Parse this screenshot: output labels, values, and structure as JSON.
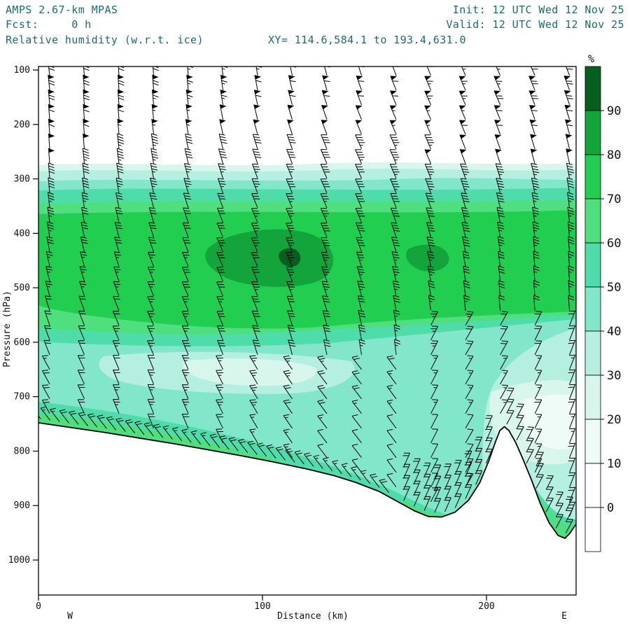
{
  "header": {
    "model": "AMPS 2.67-km MPAS",
    "fcst": "Fcst:     0 h",
    "field": "Relative humidity (w.r.t. ice)",
    "xy_range": "XY= 114.6,584.1 to 193.4,631.0",
    "init": "Init: 12 UTC Wed 12 Nov 25",
    "valid": "Valid: 12 UTC Wed 12 Nov 25",
    "text_color": "#1d6b6b"
  },
  "axes": {
    "y_label": "Pressure (hPa)",
    "y_ticks": [
      100,
      200,
      300,
      400,
      500,
      600,
      700,
      800,
      900,
      1000
    ],
    "x_label": "Distance (km)",
    "x_ticks": [
      0,
      100,
      200
    ],
    "west_label": "W",
    "east_label": "E"
  },
  "colorbar": {
    "unit": "%",
    "tick_labels": [
      90,
      80,
      70,
      60,
      50,
      40,
      30,
      20,
      10,
      0
    ],
    "segments_top_to_bottom": [
      "#075e1e",
      "#13a43b",
      "#22ce50",
      "#4fdf7f",
      "#4fdcab",
      "#82e6ca",
      "#b4efdf",
      "#d8f6ec",
      "#eefbf6",
      "#ffffff",
      "#ffffff"
    ]
  },
  "chart_data": {
    "type": "heatmap",
    "title": "Relative humidity (w.r.t. ice)",
    "model": "AMPS 2.67-km MPAS",
    "forecast_hour": "0 h",
    "init_time": "12 UTC Wed 12 Nov 25",
    "valid_time": "12 UTC Wed 12 Nov 25",
    "xlabel": "Distance (km)",
    "ylabel": "Pressure (hPa)",
    "x_range_km": [
      0,
      240
    ],
    "y_range_hPa": [
      100,
      1050
    ],
    "contour_interval_pct": 10,
    "palette": {
      "0": "#ffffff",
      "10": "#eefbf6",
      "20": "#d8f6ec",
      "30": "#b4efdf",
      "40": "#82e6ca",
      "50": "#4fdcab",
      "60": "#4fdf7f",
      "70": "#22ce50",
      "80": "#13a43b",
      "90": "#075e1e"
    },
    "rh_pct_grid": {
      "distance_km": [
        0,
        20,
        40,
        60,
        80,
        100,
        120,
        140,
        160,
        180,
        200,
        220,
        240
      ],
      "pressure_hPa": [
        150,
        250,
        300,
        350,
        400,
        450,
        500,
        550,
        600,
        650,
        700,
        750,
        800,
        850,
        900
      ],
      "values": [
        [
          5,
          5,
          5,
          6,
          6,
          7,
          7,
          7,
          6,
          6,
          5,
          5,
          5
        ],
        [
          15,
          16,
          18,
          18,
          20,
          20,
          20,
          21,
          20,
          19,
          18,
          16,
          15
        ],
        [
          34,
          36,
          38,
          40,
          42,
          42,
          43,
          44,
          44,
          42,
          40,
          38,
          36
        ],
        [
          60,
          64,
          68,
          71,
          73,
          74,
          73,
          72,
          70,
          68,
          66,
          62,
          58
        ],
        [
          68,
          72,
          75,
          78,
          83,
          86,
          82,
          79,
          82,
          78,
          72,
          69,
          66
        ],
        [
          70,
          74,
          78,
          83,
          89,
          93,
          87,
          81,
          86,
          80,
          73,
          68,
          64
        ],
        [
          69,
          73,
          76,
          79,
          83,
          85,
          81,
          77,
          75,
          71,
          66,
          60,
          55
        ],
        [
          64,
          67,
          69,
          72,
          74,
          74,
          71,
          67,
          62,
          57,
          52,
          47,
          43
        ],
        [
          54,
          55,
          54,
          51,
          49,
          51,
          54,
          55,
          51,
          44,
          39,
          35,
          33
        ],
        [
          49,
          43,
          38,
          35,
          34,
          36,
          43,
          49,
          51,
          45,
          37,
          30,
          27
        ],
        [
          51,
          47,
          41,
          37,
          36,
          39,
          46,
          51,
          53,
          48,
          39,
          27,
          25
        ],
        [
          null,
          52,
          50,
          47,
          45,
          46,
          50,
          54,
          56,
          45,
          40,
          28,
          30
        ],
        [
          null,
          null,
          null,
          null,
          null,
          48,
          52,
          55,
          57,
          48,
          42,
          null,
          35
        ],
        [
          null,
          null,
          null,
          null,
          null,
          null,
          null,
          52,
          55,
          60,
          null,
          null,
          42
        ],
        [
          null,
          null,
          null,
          null,
          null,
          null,
          null,
          null,
          null,
          62,
          null,
          null,
          45
        ]
      ]
    },
    "terrain_profile_km_hPa": [
      [
        0,
        748
      ],
      [
        15,
        757
      ],
      [
        30,
        766
      ],
      [
        45,
        776
      ],
      [
        60,
        786
      ],
      [
        75,
        797
      ],
      [
        90,
        808
      ],
      [
        105,
        820
      ],
      [
        120,
        833
      ],
      [
        132,
        845
      ],
      [
        142,
        858
      ],
      [
        152,
        874
      ],
      [
        160,
        892
      ],
      [
        168,
        910
      ],
      [
        174,
        920
      ],
      [
        180,
        921
      ],
      [
        186,
        912
      ],
      [
        192,
        890
      ],
      [
        197,
        858
      ],
      [
        201,
        818
      ],
      [
        204,
        783
      ],
      [
        206,
        762
      ],
      [
        208,
        755
      ],
      [
        210,
        762
      ],
      [
        213,
        784
      ],
      [
        216,
        812
      ],
      [
        220,
        852
      ],
      [
        224,
        896
      ],
      [
        228,
        932
      ],
      [
        232,
        955
      ],
      [
        235,
        960
      ],
      [
        237,
        952
      ],
      [
        240,
        934
      ]
    ],
    "wind_barbs": {
      "column_spacing_km": 15,
      "speed_profile_kt_by_pressure": {
        "150": 65,
        "200": 55,
        "250": 45,
        "300": 40,
        "400": 35,
        "500": 30,
        "600": 25,
        "700": 20,
        "850": 15
      },
      "note": "Strong flow aloft with pennant barbs near 100-200 hPa; terrain-following barb chains at the surface; low-level flow reversed east of km 165 around the peak near km 208"
    }
  }
}
